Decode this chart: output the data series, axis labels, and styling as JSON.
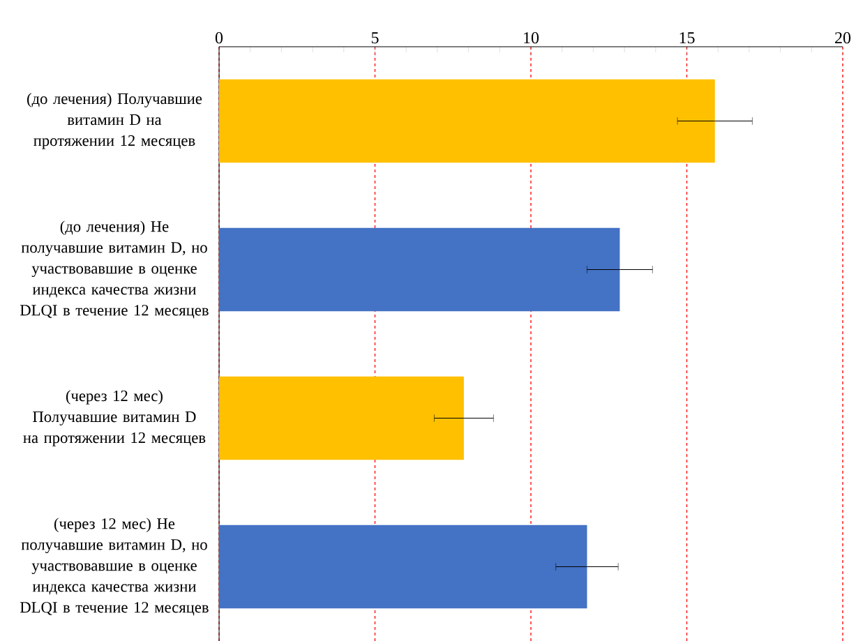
{
  "chart_data": {
    "type": "bar",
    "orientation": "horizontal",
    "categories": [
      "(до лечения) Получавшие витамин D на протяжении 12 месяцев",
      "(до лечения) Не получавшие витамин D, но участвовавшие в оценке индекса качества жизни DLQI в течение 12 месяцев",
      "(через 12 мес) Получавшие витамин D на протяжении 12 месяцев",
      "(через 12 мес) Не получавшие витамин D, но участвовавшие в оценке индекса качества жизни DLQI в течение 12 месяцев"
    ],
    "values": [
      15.9,
      12.85,
      7.85,
      11.8
    ],
    "errors": [
      [
        14.7,
        17.1
      ],
      [
        11.8,
        13.9
      ],
      [
        6.9,
        8.8
      ],
      [
        10.8,
        12.8
      ]
    ],
    "colors": [
      "#ffc000",
      "#4472c4",
      "#ffc000",
      "#4472c4"
    ],
    "xlim": [
      0,
      20
    ],
    "xticks": [
      0,
      5,
      10,
      15,
      20
    ],
    "grid": "x"
  }
}
